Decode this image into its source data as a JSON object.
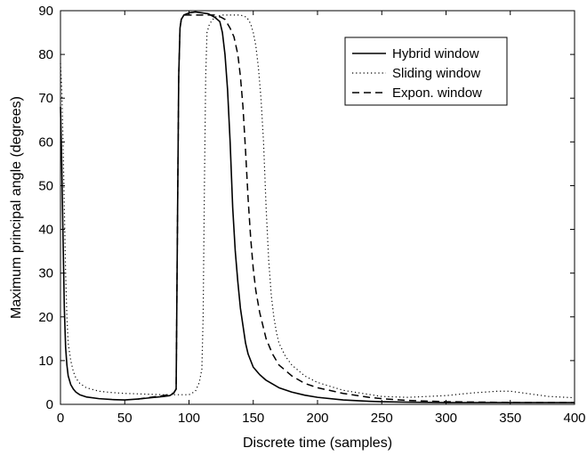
{
  "chart_data": {
    "type": "line",
    "title": "",
    "xlabel": "Discrete time (samples)",
    "ylabel": "Maximum principal angle (degrees)",
    "xlim": [
      0,
      400
    ],
    "ylim": [
      0,
      90
    ],
    "xticks": [
      0,
      50,
      100,
      150,
      200,
      250,
      300,
      350,
      400
    ],
    "yticks": [
      0,
      10,
      20,
      30,
      40,
      50,
      60,
      70,
      80,
      90
    ],
    "grid": false,
    "legend_position": "top-right",
    "series": [
      {
        "name": "Hybrid window",
        "style": "solid",
        "color": "#000000",
        "x": [
          0,
          1,
          2,
          3,
          4,
          5,
          6,
          8,
          10,
          12,
          15,
          20,
          30,
          40,
          50,
          60,
          70,
          80,
          85,
          88,
          90,
          91,
          92,
          93,
          94,
          96,
          100,
          105,
          110,
          115,
          120,
          124,
          126,
          128,
          130,
          132,
          134,
          136,
          138,
          140,
          142,
          144,
          146,
          148,
          150,
          155,
          160,
          170,
          180,
          190,
          200,
          220,
          240,
          250,
          270,
          300,
          330,
          360,
          400
        ],
        "y": [
          68,
          55,
          38,
          22,
          13,
          9,
          6.5,
          4.5,
          3.5,
          2.8,
          2.2,
          1.7,
          1.3,
          1.1,
          1.0,
          1.2,
          1.5,
          1.8,
          2.0,
          2.5,
          3.5,
          40,
          75,
          86,
          88,
          89,
          89.5,
          89.7,
          89.5,
          89.3,
          88.5,
          87.5,
          85,
          80,
          72,
          60,
          45,
          35,
          28,
          22,
          18,
          14,
          11.5,
          10,
          8.5,
          6.8,
          5.5,
          3.8,
          2.8,
          2.1,
          1.6,
          1.0,
          0.7,
          0.6,
          0.5,
          0.4,
          0.4,
          0.4,
          0.4
        ]
      },
      {
        "name": "Sliding window",
        "style": "dotted",
        "color": "#000000",
        "x": [
          0,
          1,
          2,
          3,
          4,
          5,
          6,
          8,
          10,
          12,
          15,
          20,
          30,
          40,
          50,
          60,
          70,
          80,
          90,
          100,
          105,
          108,
          110,
          111,
          112,
          113,
          114,
          116,
          120,
          125,
          130,
          140,
          145,
          148,
          150,
          152,
          154,
          156,
          158,
          160,
          162,
          164,
          166,
          168,
          170,
          175,
          180,
          190,
          200,
          220,
          250,
          270,
          300,
          320,
          340,
          350,
          360,
          380,
          400
        ],
        "y": [
          78,
          72,
          60,
          45,
          30,
          20,
          14,
          10,
          7.5,
          6.0,
          4.8,
          3.8,
          3.0,
          2.7,
          2.5,
          2.4,
          2.3,
          2.2,
          2.2,
          2.2,
          3.0,
          5.0,
          8.0,
          20,
          50,
          75,
          85,
          87,
          88.5,
          89,
          89,
          89,
          88.5,
          87,
          85,
          82,
          77,
          70,
          60,
          45,
          33,
          25,
          20,
          16.5,
          14,
          11,
          9,
          6.5,
          5.0,
          3.2,
          1.8,
          1.6,
          2.0,
          2.6,
          3.0,
          3.0,
          2.6,
          1.8,
          1.5
        ]
      },
      {
        "name": "Expon. window",
        "style": "dashed",
        "color": "#000000",
        "x": [
          60,
          70,
          80,
          85,
          88,
          90,
          91,
          92,
          93,
          94,
          96,
          100,
          110,
          120,
          125,
          128,
          130,
          132,
          135,
          138,
          140,
          142,
          144,
          146,
          148,
          150,
          152,
          155,
          160,
          165,
          170,
          180,
          190,
          200,
          220,
          240,
          250,
          270,
          300,
          330,
          360,
          400
        ],
        "y": [
          1.2,
          1.6,
          2.0,
          2.3,
          2.6,
          3.5,
          40,
          75,
          86,
          88,
          89,
          89,
          89,
          89,
          88.5,
          88,
          87,
          86,
          84,
          80,
          75,
          68,
          58,
          47,
          38,
          31,
          26,
          21,
          15,
          11.5,
          9,
          6.5,
          4.8,
          3.8,
          2.5,
          1.6,
          1.3,
          0.9,
          0.6,
          0.5,
          0.4,
          0.4
        ]
      }
    ]
  }
}
